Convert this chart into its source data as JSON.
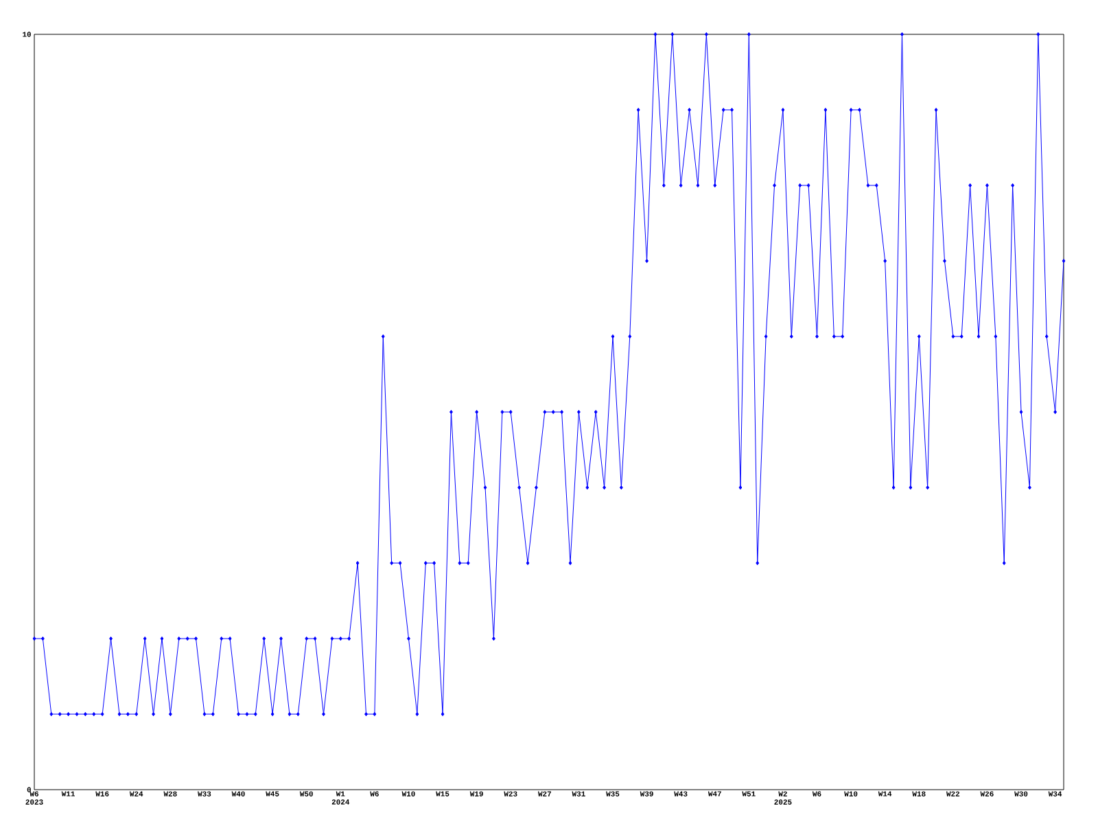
{
  "chart_data": {
    "type": "line",
    "categories": [
      "W6 2023",
      null,
      null,
      null,
      "W11",
      null,
      null,
      null,
      "W16",
      null,
      null,
      null,
      "W24",
      null,
      null,
      null,
      "W28",
      null,
      null,
      null,
      "W33",
      null,
      null,
      null,
      "W40",
      null,
      null,
      null,
      "W45",
      null,
      null,
      null,
      "W50",
      null,
      null,
      null,
      "W1 2024",
      null,
      null,
      null,
      "W6",
      null,
      null,
      null,
      "W10",
      null,
      null,
      null,
      "W15",
      null,
      null,
      null,
      "W19",
      null,
      null,
      null,
      "W23",
      null,
      null,
      null,
      "W27",
      null,
      null,
      null,
      "W31",
      null,
      null,
      null,
      "W35",
      null,
      null,
      null,
      "W39",
      null,
      null,
      null,
      "W43",
      null,
      null,
      null,
      "W47",
      null,
      null,
      null,
      "W51",
      null,
      null,
      null,
      "W2 2025",
      null,
      null,
      null,
      "W6",
      null,
      null,
      null,
      "W10",
      null,
      null,
      null,
      "W14",
      null,
      null,
      null,
      "W18",
      null,
      null,
      null,
      "W22",
      null,
      null,
      null,
      "W26",
      null,
      null,
      null,
      "W30",
      null,
      null,
      null,
      "W34",
      null
    ],
    "values": [
      2,
      2,
      1,
      1,
      1,
      1,
      1,
      1,
      1,
      2,
      1,
      1,
      1,
      2,
      1,
      2,
      1,
      2,
      2,
      2,
      1,
      1,
      2,
      2,
      1,
      1,
      1,
      2,
      1,
      2,
      1,
      1,
      2,
      2,
      1,
      2,
      2,
      2,
      3,
      1,
      1,
      6,
      3,
      3,
      2,
      1,
      3,
      3,
      1,
      5,
      3,
      3,
      5,
      4,
      2,
      5,
      5,
      4,
      3,
      4,
      5,
      5,
      5,
      3,
      5,
      4,
      5,
      4,
      6,
      4,
      6,
      9,
      7,
      10,
      8,
      10,
      8,
      9,
      8,
      10,
      8,
      9,
      9,
      4,
      10,
      3,
      6,
      8,
      9,
      6,
      8,
      8,
      6,
      9,
      6,
      6,
      9,
      9,
      8,
      8,
      7,
      4,
      10,
      4,
      6,
      4,
      9,
      7,
      6,
      6,
      8,
      6,
      8,
      6,
      3,
      8,
      5,
      4,
      10,
      6,
      5,
      7
    ],
    "color": "#0000ff",
    "marker": "diamond",
    "ylim": [
      0,
      10
    ],
    "yticks": [
      0,
      10
    ],
    "grid": false
  }
}
